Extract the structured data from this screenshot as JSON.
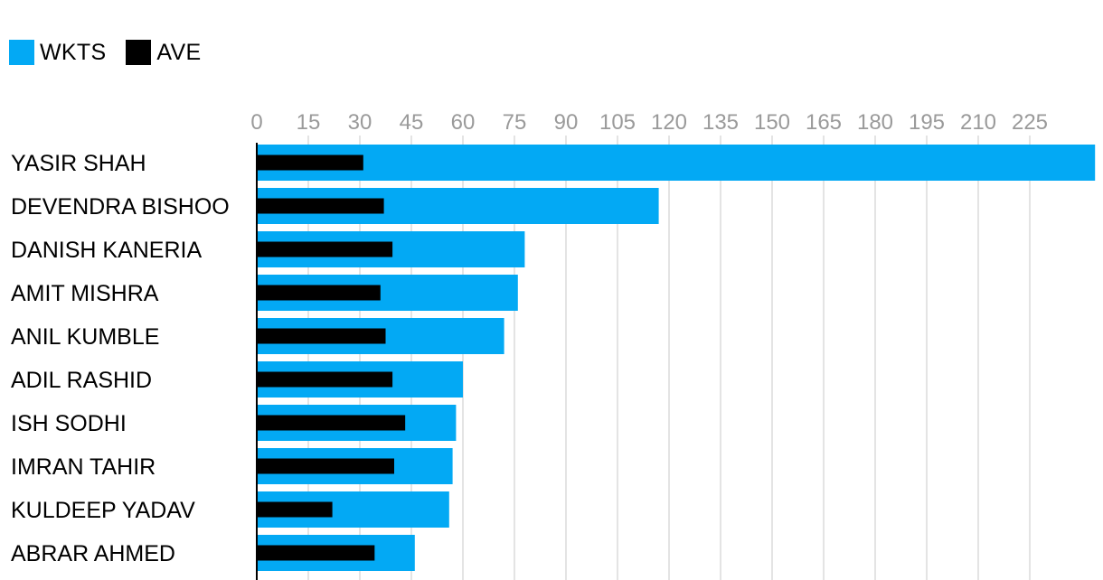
{
  "legend": {
    "wkts_label": "WKTS",
    "ave_label": "AVE"
  },
  "colors": {
    "wkts": "#03a9f4",
    "ave": "#000000",
    "grid": "#dcdcdc",
    "tick_text": "#9a9a9a"
  },
  "chart_data": {
    "type": "bar",
    "orientation": "horizontal",
    "categories": [
      "YASIR SHAH",
      "DEVENDRA BISHOO",
      "DANISH KANERIA",
      "AMIT MISHRA",
      "ANIL KUMBLE",
      "ADIL RASHID",
      "ISH SODHI",
      "IMRAN TAHIR",
      "KULDEEP YADAV",
      "ABRAR AHMED"
    ],
    "series": [
      {
        "name": "WKTS",
        "values": [
          244,
          117,
          78,
          76,
          72,
          60,
          58,
          57,
          56,
          46
        ]
      },
      {
        "name": "AVE",
        "values": [
          31,
          37,
          39.5,
          36,
          37.5,
          39.5,
          43.2,
          40,
          22,
          34.3
        ]
      }
    ],
    "ticks": [
      "0",
      "15",
      "30",
      "45",
      "60",
      "75",
      "90",
      "105",
      "120",
      "135",
      "150",
      "165",
      "180",
      "195",
      "210",
      "225"
    ],
    "xlim": [
      0,
      244
    ],
    "grid": true,
    "legend_position": "top-left"
  }
}
